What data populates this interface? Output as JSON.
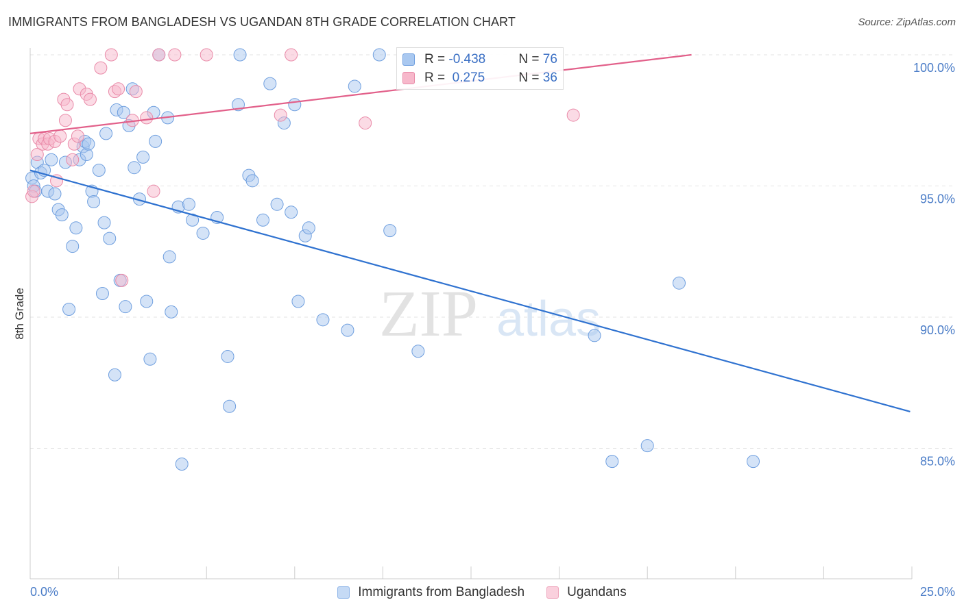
{
  "title": "IMMIGRANTS FROM BANGLADESH VS UGANDAN 8TH GRADE CORRELATION CHART",
  "source": "Source: ZipAtlas.com",
  "watermark": {
    "zip": "ZIP",
    "atlas": "atlas"
  },
  "colors": {
    "blue_fill": "#a9c8f0",
    "blue_stroke": "#6f9fdf",
    "blue_line": "#2f72d0",
    "pink_fill": "#f7b8cb",
    "pink_stroke": "#e98aa8",
    "pink_line": "#e2608a",
    "tick_label": "#4a7cc7",
    "grid": "#e3e3e3"
  },
  "legend": {
    "rows": [
      {
        "r_label": "R = ",
        "r_value": "-0.438",
        "n_label": "N = ",
        "n_value": "76"
      },
      {
        "r_label": "R = ",
        "r_value": " 0.275",
        "n_label": "N = ",
        "n_value": "36"
      }
    ]
  },
  "chart_data": {
    "type": "scatter",
    "title": "IMMIGRANTS FROM BANGLADESH VS UGANDAN 8TH GRADE CORRELATION CHART",
    "xlabel": "",
    "ylabel": "8th Grade",
    "xlim": [
      0,
      25
    ],
    "ylim": [
      80,
      100.8
    ],
    "x_tick_labels": [
      "0.0%",
      "25.0%"
    ],
    "y_ticks": [
      85,
      90,
      95,
      100
    ],
    "y_tick_labels": [
      "85.0%",
      "90.0%",
      "95.0%",
      "100.0%"
    ],
    "grid": "horizontal dashed",
    "legend_position": "top-center and bottom",
    "series": [
      {
        "name": "Immigrants from Bangladesh",
        "color": "#a9c8f0",
        "r": -0.438,
        "n": 76,
        "trend": {
          "x": [
            0,
            24.95
          ],
          "y": [
            95.6,
            86.4
          ]
        },
        "points": [
          [
            0.05,
            95.3
          ],
          [
            0.1,
            95.0
          ],
          [
            0.15,
            94.8
          ],
          [
            0.2,
            95.9
          ],
          [
            0.3,
            95.5
          ],
          [
            0.4,
            95.6
          ],
          [
            0.5,
            94.8
          ],
          [
            0.6,
            96.0
          ],
          [
            0.7,
            94.7
          ],
          [
            0.8,
            94.1
          ],
          [
            0.9,
            93.9
          ],
          [
            1.0,
            95.9
          ],
          [
            1.1,
            90.3
          ],
          [
            1.2,
            92.7
          ],
          [
            1.3,
            93.4
          ],
          [
            1.4,
            96.0
          ],
          [
            1.5,
            96.5
          ],
          [
            1.55,
            96.7
          ],
          [
            1.6,
            96.2
          ],
          [
            1.65,
            96.6
          ],
          [
            1.75,
            94.8
          ],
          [
            1.8,
            94.4
          ],
          [
            1.95,
            95.6
          ],
          [
            2.05,
            90.9
          ],
          [
            2.1,
            93.6
          ],
          [
            2.15,
            97.0
          ],
          [
            2.25,
            93.0
          ],
          [
            2.4,
            87.8
          ],
          [
            2.45,
            97.9
          ],
          [
            2.55,
            91.4
          ],
          [
            2.65,
            97.8
          ],
          [
            2.7,
            90.4
          ],
          [
            2.8,
            97.3
          ],
          [
            2.9,
            98.7
          ],
          [
            2.95,
            95.7
          ],
          [
            3.1,
            94.5
          ],
          [
            3.2,
            96.1
          ],
          [
            3.3,
            90.6
          ],
          [
            3.4,
            88.4
          ],
          [
            3.5,
            97.8
          ],
          [
            3.55,
            96.7
          ],
          [
            3.65,
            100.0
          ],
          [
            3.9,
            97.6
          ],
          [
            3.95,
            92.3
          ],
          [
            4.0,
            90.2
          ],
          [
            4.2,
            94.2
          ],
          [
            4.3,
            84.4
          ],
          [
            4.5,
            94.3
          ],
          [
            4.6,
            93.7
          ],
          [
            4.9,
            93.2
          ],
          [
            5.3,
            93.8
          ],
          [
            5.6,
            88.5
          ],
          [
            5.65,
            86.6
          ],
          [
            5.9,
            98.1
          ],
          [
            5.95,
            100.0
          ],
          [
            6.2,
            95.4
          ],
          [
            6.3,
            95.2
          ],
          [
            6.6,
            93.7
          ],
          [
            6.8,
            98.9
          ],
          [
            7.0,
            94.3
          ],
          [
            7.2,
            97.4
          ],
          [
            7.4,
            94.0
          ],
          [
            7.5,
            98.1
          ],
          [
            7.6,
            90.6
          ],
          [
            7.8,
            93.1
          ],
          [
            7.9,
            93.4
          ],
          [
            8.3,
            89.9
          ],
          [
            9.0,
            89.5
          ],
          [
            9.2,
            98.8
          ],
          [
            9.9,
            100.0
          ],
          [
            10.2,
            93.3
          ],
          [
            11.0,
            88.7
          ],
          [
            16.0,
            89.3
          ],
          [
            16.5,
            84.5
          ],
          [
            17.5,
            85.1
          ],
          [
            18.4,
            91.3
          ],
          [
            20.5,
            84.5
          ]
        ]
      },
      {
        "name": "Ugandans",
        "color": "#f7b8cb",
        "r": 0.275,
        "n": 36,
        "trend": {
          "x": [
            0,
            18.75
          ],
          "y": [
            97.0,
            100.0
          ]
        },
        "points": [
          [
            0.05,
            94.6
          ],
          [
            0.1,
            94.8
          ],
          [
            0.2,
            96.2
          ],
          [
            0.25,
            96.8
          ],
          [
            0.35,
            96.6
          ],
          [
            0.4,
            96.8
          ],
          [
            0.5,
            96.6
          ],
          [
            0.55,
            96.8
          ],
          [
            0.7,
            96.7
          ],
          [
            0.75,
            95.2
          ],
          [
            0.85,
            96.9
          ],
          [
            0.95,
            98.3
          ],
          [
            1.0,
            97.5
          ],
          [
            1.05,
            98.1
          ],
          [
            1.2,
            96.0
          ],
          [
            1.25,
            96.6
          ],
          [
            1.35,
            96.9
          ],
          [
            1.4,
            98.7
          ],
          [
            1.6,
            98.5
          ],
          [
            1.7,
            98.3
          ],
          [
            2.0,
            99.5
          ],
          [
            2.3,
            100.0
          ],
          [
            2.4,
            98.6
          ],
          [
            2.5,
            98.7
          ],
          [
            2.6,
            91.4
          ],
          [
            2.9,
            97.5
          ],
          [
            3.0,
            98.6
          ],
          [
            3.3,
            97.6
          ],
          [
            3.5,
            94.8
          ],
          [
            3.65,
            100.0
          ],
          [
            4.1,
            100.0
          ],
          [
            5.0,
            100.0
          ],
          [
            7.1,
            97.7
          ],
          [
            7.4,
            100.0
          ],
          [
            9.5,
            97.4
          ],
          [
            15.4,
            97.7
          ]
        ]
      }
    ]
  }
}
